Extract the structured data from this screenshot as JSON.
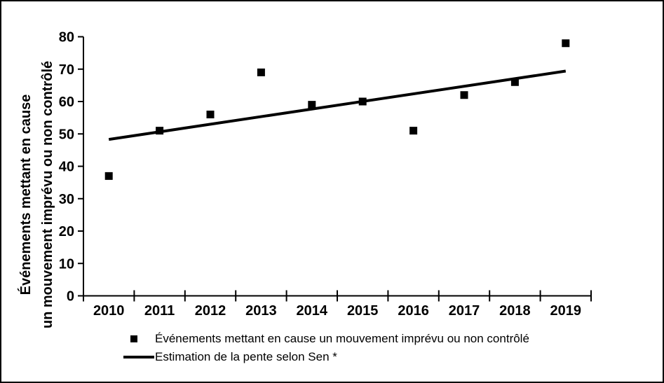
{
  "colors": {
    "foreground": "#000000",
    "background": "#ffffff"
  },
  "chart_data": {
    "type": "scatter",
    "title": "",
    "x": [
      "2010",
      "2011",
      "2012",
      "2013",
      "2014",
      "2015",
      "2016",
      "2017",
      "2018",
      "2019"
    ],
    "series": [
      {
        "name": "Événements mettant en cause un mouvement imprévu ou non contrôlé",
        "type": "scatter",
        "marker": "square",
        "color": "#000000",
        "values": [
          37,
          51,
          56,
          69,
          59,
          60,
          51,
          62,
          66,
          78
        ]
      },
      {
        "name": "Estimation de la pente selon Sen *",
        "type": "line",
        "color": "#000000",
        "x": [
          "2010",
          "2019"
        ],
        "values": [
          48.3,
          69.4
        ]
      }
    ],
    "xlabel": "",
    "ylabel_lines": [
      "Événements mettant en cause",
      "un mouvement imprévu ou non contrôlé"
    ],
    "ylim": [
      0,
      80
    ],
    "y_ticks": [
      0,
      10,
      20,
      30,
      40,
      50,
      60,
      70,
      80
    ],
    "grid": false,
    "legend_position": "bottom-center"
  }
}
